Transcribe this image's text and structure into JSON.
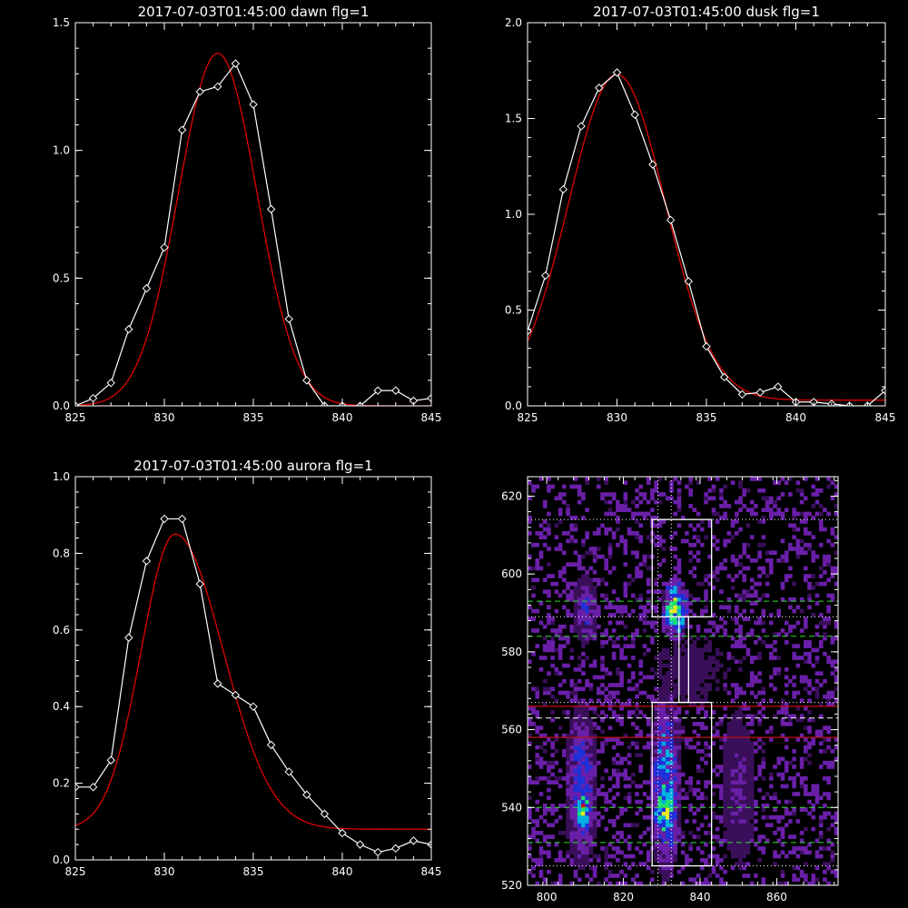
{
  "chart_data": [
    {
      "type": "line",
      "title": "2017-07-03T01:45:00 dawn flg=1",
      "xlim": [
        825,
        845
      ],
      "ylim": [
        0,
        1.5
      ],
      "xticks": [
        "825",
        "830",
        "835",
        "840",
        "845"
      ],
      "xtick_values": [
        825,
        830,
        835,
        840,
        845
      ],
      "yticks": [
        "0.0",
        "0.5",
        "1.0",
        "1.5"
      ],
      "ytick_values": [
        0,
        0.5,
        1.0,
        1.5
      ],
      "colors": {
        "observed": "#ffffff",
        "fit": "#e00000"
      },
      "series": [
        {
          "x": [
            825,
            826,
            827,
            828,
            829,
            830,
            831,
            832,
            833,
            834,
            835,
            836,
            837,
            838,
            839,
            840,
            841,
            842,
            843,
            844,
            845
          ],
          "values": [
            0.0,
            0.03,
            0.09,
            0.3,
            0.46,
            0.62,
            1.08,
            1.23,
            1.25,
            1.34,
            1.18,
            0.77,
            0.34,
            0.1,
            0.0,
            0.0,
            0.0,
            0.06,
            0.06,
            0.02,
            0.03
          ],
          "markers": "diamond"
        },
        {
          "gaussian": {
            "center": 833.0,
            "amplitude": 1.38,
            "sigma": 2.2,
            "offset": 0.0
          }
        }
      ]
    },
    {
      "type": "line",
      "title": "2017-07-03T01:45:00 dusk flg=1",
      "xlim": [
        825,
        845
      ],
      "ylim": [
        0,
        2.0
      ],
      "xticks": [
        "825",
        "830",
        "835",
        "840",
        "845"
      ],
      "xtick_values": [
        825,
        830,
        835,
        840,
        845
      ],
      "yticks": [
        "0.0",
        "0.5",
        "1.0",
        "1.5",
        "2.0"
      ],
      "ytick_values": [
        0,
        0.5,
        1.0,
        1.5,
        2.0
      ],
      "colors": {
        "observed": "#ffffff",
        "fit": "#e00000"
      },
      "series": [
        {
          "x": [
            825,
            826,
            827,
            828,
            829,
            830,
            831,
            832,
            833,
            834,
            835,
            836,
            837,
            838,
            839,
            840,
            841,
            842,
            843,
            844,
            845
          ],
          "values": [
            0.39,
            0.68,
            1.13,
            1.46,
            1.66,
            1.74,
            1.52,
            1.26,
            0.97,
            0.65,
            0.31,
            0.15,
            0.06,
            0.07,
            0.1,
            0.02,
            0.02,
            0.01,
            0.0,
            0.0,
            0.08
          ],
          "markers": "diamond"
        },
        {
          "gaussian": {
            "center": 830.0,
            "amplitude": 1.7,
            "sigma": 2.7,
            "offset": 0.03
          }
        }
      ]
    },
    {
      "type": "line",
      "title": "2017-07-03T01:45:00 aurora flg=1",
      "xlim": [
        825,
        845
      ],
      "ylim": [
        0,
        1.0
      ],
      "xticks": [
        "825",
        "830",
        "835",
        "840",
        "845"
      ],
      "xtick_values": [
        825,
        830,
        835,
        840,
        845
      ],
      "yticks": [
        "0.0",
        "0.2",
        "0.4",
        "0.6",
        "0.8",
        "1.0"
      ],
      "ytick_values": [
        0,
        0.2,
        0.4,
        0.6,
        0.8,
        1.0
      ],
      "colors": {
        "observed": "#ffffff",
        "fit": "#e00000"
      },
      "series": [
        {
          "x": [
            825,
            826,
            827,
            828,
            829,
            830,
            831,
            832,
            833,
            834,
            835,
            836,
            837,
            838,
            839,
            840,
            841,
            842,
            843,
            844,
            845
          ],
          "values": [
            0.19,
            0.19,
            0.26,
            0.58,
            0.78,
            0.89,
            0.89,
            0.72,
            0.46,
            0.43,
            0.4,
            0.3,
            0.23,
            0.17,
            0.12,
            0.07,
            0.04,
            0.02,
            0.03,
            0.05,
            0.04
          ],
          "markers": "diamond"
        },
        {
          "gaussian_asym": {
            "center": 830.6,
            "amplitude": 0.77,
            "sigma_left": 1.9,
            "sigma_right": 2.7,
            "offset": 0.08
          }
        }
      ]
    },
    {
      "type": "heatmap",
      "title": "",
      "xlim": [
        795,
        876
      ],
      "ylim": [
        520,
        625
      ],
      "xticks": [
        "800",
        "820",
        "840",
        "860"
      ],
      "xtick_values": [
        800,
        820,
        840,
        860
      ],
      "yticks": [
        "520",
        "540",
        "560",
        "580",
        "600",
        "620"
      ],
      "ytick_values": [
        520,
        540,
        560,
        580,
        600,
        620
      ],
      "colormap": [
        "#000000",
        "#3a0f5a",
        "#6a1fa8",
        "#2030d8",
        "#00b0e0",
        "#20e070",
        "#e8e820",
        "#e00000"
      ],
      "bright_regions": [
        {
          "x": [
            827,
            834
          ],
          "y": [
            526,
            566
          ],
          "level": 0.55
        },
        {
          "x": [
            828,
            833
          ],
          "y": [
            532,
            546
          ],
          "level": 0.85
        },
        {
          "x": [
            805,
            812
          ],
          "y": [
            528,
            562
          ],
          "level": 0.45
        },
        {
          "x": [
            807,
            811
          ],
          "y": [
            534,
            544
          ],
          "level": 0.8
        },
        {
          "x": [
            830,
            836
          ],
          "y": [
            584,
            597
          ],
          "level": 0.75
        },
        {
          "x": [
            832,
            834
          ],
          "y": [
            589,
            593
          ],
          "level": 0.95
        },
        {
          "x": [
            807,
            812
          ],
          "y": [
            583,
            598
          ],
          "level": 0.4
        },
        {
          "x": [
            846,
            853
          ],
          "y": [
            528,
            560
          ],
          "level": 0.25
        },
        {
          "x": [
            828,
            845
          ],
          "y": [
            566,
            584
          ],
          "level": 0.12
        }
      ],
      "boxes": [
        {
          "x": [
            827.5,
            843
          ],
          "y": [
            525,
            567
          ]
        },
        {
          "x": [
            827.5,
            843
          ],
          "y": [
            589,
            614
          ]
        },
        {
          "x": [
            834.5,
            837
          ],
          "y": [
            567,
            589
          ]
        }
      ],
      "dotted_lines": {
        "x": [
          829,
          832.5
        ],
        "y": [
          525,
          567,
          589,
          614
        ],
        "color": "#ffffff"
      },
      "dashed_lines": [
        {
          "y": 531,
          "color": "#30e030"
        },
        {
          "y": 540,
          "color": "#30e030"
        },
        {
          "y": 563,
          "color": "#ffffff"
        },
        {
          "y": 584,
          "color": "#30e030"
        },
        {
          "y": 593,
          "color": "#30e030"
        }
      ],
      "solid_lines": [
        {
          "y": 558,
          "color": "#c01010"
        },
        {
          "y": 566,
          "color": "#c01010"
        }
      ]
    }
  ]
}
